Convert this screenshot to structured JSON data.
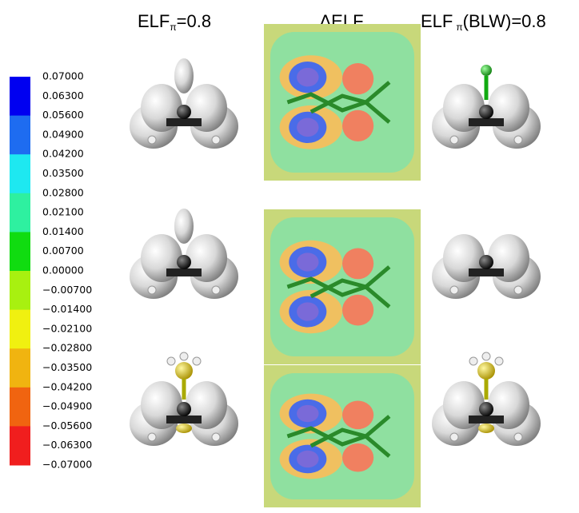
{
  "headers": [
    {
      "main": "ELF",
      "sub": "π",
      "rest": "=0.8"
    },
    {
      "main": "ΔELF"
    },
    {
      "main": "ELF",
      "sub": "π",
      "rest": "(BLW)=0.8"
    }
  ],
  "colorbar": {
    "labels": [
      "0.07000",
      "0.06300",
      "0.05600",
      "0.04900",
      "0.04200",
      "0.03500",
      "0.02800",
      "0.02100",
      "0.01400",
      "0.00700",
      "0.00000",
      "−0.00700",
      "−0.01400",
      "−0.02100",
      "−0.02800",
      "−0.03500",
      "−0.04200",
      "−0.04900",
      "−0.05600",
      "−0.06300",
      "−0.07000"
    ],
    "colors": [
      "#0000f0",
      "#1e6cf0",
      "#1ee8f0",
      "#2ef0a0",
      "#10dc10",
      "#a8f010",
      "#f0f010",
      "#f0b410",
      "#f06410",
      "#f01e1e"
    ]
  }
}
